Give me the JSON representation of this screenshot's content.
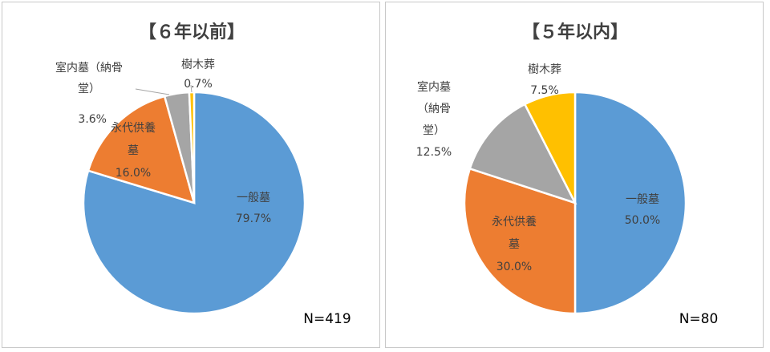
{
  "chart_data": [
    {
      "type": "pie",
      "title": "【６年以前】",
      "n_label": "N=419",
      "colors": [
        "#5b9bd5",
        "#ed7d31",
        "#a5a5a5",
        "#ffc000"
      ],
      "slices": [
        {
          "name_lines": [
            "一般墓"
          ],
          "value": 79.7,
          "value_label": "79.7%"
        },
        {
          "name_lines": [
            "永代供養",
            "墓"
          ],
          "value": 16.0,
          "value_label": "16.0%"
        },
        {
          "name_lines": [
            "室内墓（納骨",
            "堂）"
          ],
          "value": 3.6,
          "value_label": "3.6%"
        },
        {
          "name_lines": [
            "樹木葬"
          ],
          "value": 0.7,
          "value_label": "0.7%"
        }
      ]
    },
    {
      "type": "pie",
      "title": "【５年以内】",
      "n_label": "N=80",
      "colors": [
        "#5b9bd5",
        "#ed7d31",
        "#a5a5a5",
        "#ffc000"
      ],
      "slices": [
        {
          "name_lines": [
            "一般墓"
          ],
          "value": 50.0,
          "value_label": "50.0%"
        },
        {
          "name_lines": [
            "永代供養",
            "墓"
          ],
          "value": 30.0,
          "value_label": "30.0%"
        },
        {
          "name_lines": [
            "室内墓",
            "（納骨",
            "堂）"
          ],
          "value": 12.5,
          "value_label": "12.5%"
        },
        {
          "name_lines": [
            "樹木葬"
          ],
          "value": 7.5,
          "value_label": "7.5%"
        }
      ]
    }
  ]
}
